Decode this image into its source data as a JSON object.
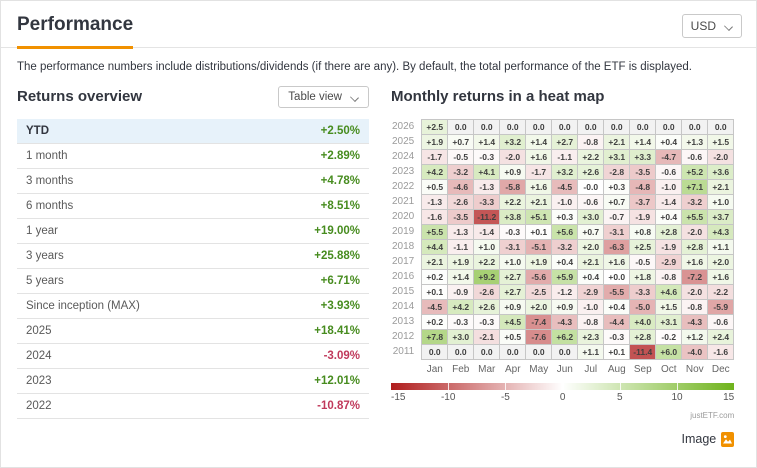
{
  "header": {
    "title": "Performance",
    "currency": "USD"
  },
  "description": "The performance numbers include distributions/dividends (if there are any). By default, the total performance of the ETF is displayed.",
  "returns_overview": {
    "title": "Returns overview",
    "view_selector": "Table view",
    "rows": [
      {
        "label": "YTD",
        "value": "+2.50%",
        "highlight": true
      },
      {
        "label": "1 month",
        "value": "+2.89%"
      },
      {
        "label": "3 months",
        "value": "+4.78%"
      },
      {
        "label": "6 months",
        "value": "+8.51%"
      },
      {
        "label": "1 year",
        "value": "+19.00%"
      },
      {
        "label": "3 years",
        "value": "+25.88%"
      },
      {
        "label": "5 years",
        "value": "+6.71%"
      },
      {
        "label": "Since inception (MAX)",
        "value": "+3.93%"
      },
      {
        "label": "2025",
        "value": "+18.41%"
      },
      {
        "label": "2024",
        "value": "-3.09%"
      },
      {
        "label": "2023",
        "value": "+12.01%"
      },
      {
        "label": "2022",
        "value": "-10.87%"
      }
    ]
  },
  "chart_data": {
    "type": "heatmap",
    "title": "Monthly returns in a heat map",
    "columns": [
      "Jan",
      "Feb",
      "Mar",
      "Apr",
      "May",
      "Jun",
      "Jul",
      "Aug",
      "Sep",
      "Oct",
      "Nov",
      "Dec"
    ],
    "rows": [
      {
        "year": "2026",
        "values": [
          "+2.5",
          "0.0",
          "0.0",
          "0.0",
          "0.0",
          "0.0",
          "0.0",
          "0.0",
          "0.0",
          "0.0",
          "0.0",
          "0.0"
        ]
      },
      {
        "year": "2025",
        "values": [
          "+1.9",
          "+0.7",
          "+1.4",
          "+3.2",
          "+1.4",
          "+2.7",
          "-0.8",
          "+2.1",
          "+1.4",
          "+0.4",
          "+1.3",
          "+1.5"
        ]
      },
      {
        "year": "2024",
        "values": [
          "-1.7",
          "-0.5",
          "-0.3",
          "-2.0",
          "+1.6",
          "-1.1",
          "+2.2",
          "+3.1",
          "+3.3",
          "-4.7",
          "-0.6",
          "-2.0"
        ]
      },
      {
        "year": "2023",
        "values": [
          "+4.2",
          "-3.2",
          "+4.1",
          "+0.9",
          "-1.7",
          "+3.2",
          "+2.6",
          "-2.8",
          "-3.5",
          "-0.6",
          "+5.2",
          "+3.6"
        ]
      },
      {
        "year": "2022",
        "values": [
          "+0.5",
          "-4.6",
          "-1.3",
          "-5.8",
          "+1.6",
          "-4.5",
          "-0.0",
          "+0.3",
          "-4.8",
          "-1.0",
          "+7.1",
          "+2.1"
        ]
      },
      {
        "year": "2021",
        "values": [
          "-1.3",
          "-2.6",
          "-3.3",
          "+2.2",
          "+2.1",
          "-1.0",
          "-0.6",
          "+0.7",
          "-3.7",
          "-1.4",
          "-3.2",
          "+1.0"
        ]
      },
      {
        "year": "2020",
        "values": [
          "-1.6",
          "-3.5",
          "-11.2",
          "+3.8",
          "+5.1",
          "+0.3",
          "+3.0",
          "-0.7",
          "-1.9",
          "+0.4",
          "+5.5",
          "+3.7"
        ]
      },
      {
        "year": "2019",
        "values": [
          "+5.5",
          "-1.3",
          "-1.4",
          "-0.3",
          "+0.1",
          "+5.6",
          "+0.7",
          "-3.1",
          "+0.8",
          "+2.8",
          "-2.0",
          "+4.3"
        ]
      },
      {
        "year": "2018",
        "values": [
          "+4.4",
          "-1.1",
          "+1.0",
          "-3.1",
          "-5.1",
          "-3.2",
          "+2.0",
          "-6.3",
          "+2.5",
          "-1.9",
          "+2.8",
          "+1.1"
        ]
      },
      {
        "year": "2017",
        "values": [
          "+2.1",
          "+1.9",
          "+2.2",
          "+1.0",
          "+1.9",
          "+0.4",
          "+2.1",
          "+1.6",
          "-0.5",
          "-2.9",
          "+1.6",
          "+2.0"
        ]
      },
      {
        "year": "2016",
        "values": [
          "+0.2",
          "+1.4",
          "+9.2",
          "+2.7",
          "-5.6",
          "+5.9",
          "+0.4",
          "+0.0",
          "+1.8",
          "-0.8",
          "-7.2",
          "+1.6"
        ]
      },
      {
        "year": "2015",
        "values": [
          "+0.1",
          "-0.9",
          "-2.6",
          "+2.7",
          "-2.5",
          "-1.2",
          "-2.9",
          "-5.5",
          "-3.3",
          "+4.6",
          "-2.0",
          "-2.2"
        ]
      },
      {
        "year": "2014",
        "values": [
          "-4.5",
          "+4.2",
          "+2.6",
          "+0.9",
          "+2.0",
          "+0.9",
          "-1.0",
          "+0.4",
          "-5.0",
          "+1.5",
          "-0.8",
          "-5.9"
        ]
      },
      {
        "year": "2013",
        "values": [
          "+0.2",
          "-0.3",
          "-0.3",
          "+4.5",
          "-7.4",
          "-4.3",
          "-0.8",
          "-4.4",
          "+4.0",
          "+3.1",
          "-4.3",
          "-0.6"
        ]
      },
      {
        "year": "2012",
        "values": [
          "+7.8",
          "+3.0",
          "-2.1",
          "+0.5",
          "-7.6",
          "+6.2",
          "+2.3",
          "-0.3",
          "+2.8",
          "-0.2",
          "+1.2",
          "+2.4"
        ]
      },
      {
        "year": "2011",
        "values": [
          "0.0",
          "0.0",
          "0.0",
          "0.0",
          "0.0",
          "0.0",
          "+1.1",
          "+0.1",
          "-11.4",
          "+6.0",
          "-4.0",
          "-1.6"
        ]
      }
    ],
    "legend": {
      "min": -15,
      "max": 15,
      "ticks": [
        "-15",
        "-10",
        "-5",
        "0",
        "5",
        "10",
        "15"
      ]
    },
    "attribution": "justETF.com"
  },
  "footer": {
    "image_label": "Image"
  },
  "colors": {
    "accent": "#f19100",
    "positive": "#478c1f",
    "negative": "#c0395b",
    "highlight_row": "#e7f2fa",
    "heat_positive_max": "#6fb31c",
    "heat_negative_max": "#b01d1d",
    "heat_nodata": "#f2f2f2"
  }
}
